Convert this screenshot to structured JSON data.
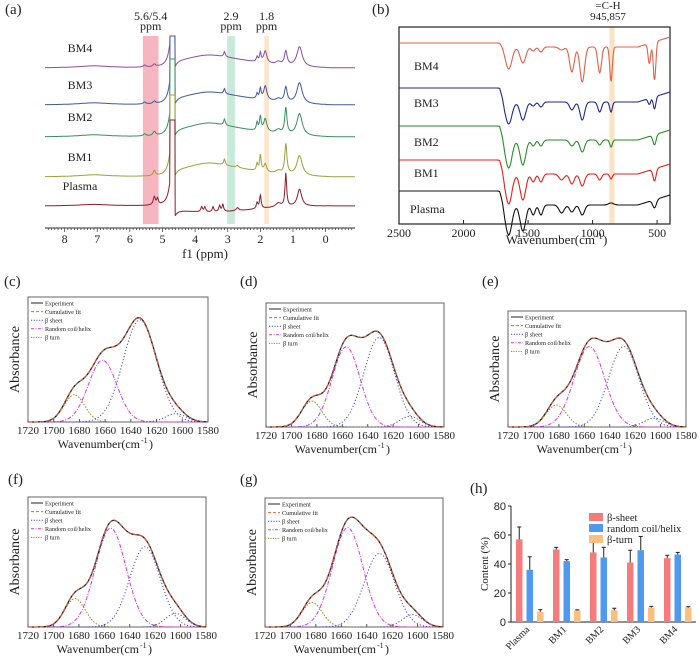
{
  "chart_data": [
    {
      "panel": "(a)",
      "type": "line",
      "title": "",
      "xlabel": "f1 (ppm)",
      "ylabel": "",
      "xlim": [
        8.6,
        -0.9
      ],
      "x_ticks": [
        "8",
        "7",
        "6",
        "5",
        "4",
        "3",
        "2",
        "1",
        "0"
      ],
      "x_tick_values": [
        8,
        7,
        6,
        5,
        4,
        3,
        2,
        1,
        0
      ],
      "highlights": [
        {
          "label": "5.6/5.4\nppm",
          "label_lines": [
            "5.6/5.4",
            "ppm"
          ],
          "from": 5.6,
          "to": 5.12,
          "color": "#f4a9b4"
        },
        {
          "label_lines": [
            "2.9",
            "ppm"
          ],
          "from": 3.02,
          "to": 2.78,
          "color": "#bfe6d3"
        },
        {
          "label_lines": [
            "1.8",
            "ppm"
          ],
          "from": 1.88,
          "to": 1.74,
          "color": "#fde0c0"
        }
      ],
      "series": [
        {
          "name": "BM4",
          "color": "#8a4f9e"
        },
        {
          "name": "BM3",
          "color": "#3f5a9c"
        },
        {
          "name": "BM2",
          "color": "#3a8f60"
        },
        {
          "name": "BM1",
          "color": "#9aa33a"
        },
        {
          "name": "Plasma",
          "color": "#8b1e2c"
        }
      ],
      "peaks_ppm": [
        7.1,
        5.55,
        5.25,
        4.7,
        3.6,
        3.1,
        2.7,
        2.1,
        2.0,
        1.85,
        1.45,
        1.22,
        0.8
      ]
    },
    {
      "panel": "(b)",
      "type": "line",
      "xlabel": "Wavenumber(cm⁻¹)",
      "ylabel": "",
      "xlim": [
        2500,
        400
      ],
      "x_ticks": [
        "2500",
        "2000",
        "1500",
        "1000",
        "500"
      ],
      "x_tick_values": [
        2500,
        2000,
        1500,
        1000,
        500
      ],
      "annotation": {
        "lines": [
          "=C-H",
          "945,857"
        ],
        "band_from": 870,
        "band_to": 830,
        "color": "#fbe3c6"
      },
      "series": [
        {
          "name": "BM4",
          "color": "#e0614a"
        },
        {
          "name": "BM3",
          "color": "#1f2a8a"
        },
        {
          "name": "BM2",
          "color": "#2a8a2a"
        },
        {
          "name": "BM1",
          "color": "#e02020"
        },
        {
          "name": "Plasma",
          "color": "#111111"
        }
      ],
      "bands_cm": [
        1650,
        1540,
        1450,
        1400,
        1240,
        1160,
        1080,
        945,
        857,
        560,
        520
      ]
    },
    {
      "panel": "(c)",
      "type": "line",
      "xlabel": "Wavenumber(cm⁻¹)",
      "ylabel": "Absorbance",
      "xlim": [
        1720,
        1580
      ],
      "x_ticks": [
        "1720",
        "1700",
        "1680",
        "1660",
        "1640",
        "1620",
        "1600",
        "1580"
      ],
      "legend": [
        "Experiment",
        "Cumulative fit",
        "β sheet",
        "Random coil/helix",
        "β turn"
      ],
      "components": [
        {
          "name": "β turn",
          "center": 1684,
          "height": 0.23,
          "width": 8
        },
        {
          "name": "Random coil/helix",
          "center": 1662,
          "height": 0.52,
          "width": 11
        },
        {
          "name": "β sheet",
          "center": 1633,
          "height": 0.86,
          "width": 13
        },
        {
          "name": "β sheet 2",
          "center": 1605,
          "height": 0.07,
          "width": 8
        }
      ]
    },
    {
      "panel": "(d)",
      "type": "line",
      "xlabel": "Wavenumber(cm⁻¹)",
      "ylabel": "Absorbance",
      "xlim": [
        1720,
        1580
      ],
      "x_ticks": [
        "1720",
        "1700",
        "1680",
        "1660",
        "1640",
        "1620",
        "1600",
        "1580"
      ],
      "legend": [
        "Experiment",
        "Cumulative fit",
        "β sheet",
        "Random coil/helix",
        "β turn"
      ],
      "components": [
        {
          "name": "β turn",
          "center": 1684,
          "height": 0.22,
          "width": 8
        },
        {
          "name": "Random coil/helix",
          "center": 1657,
          "height": 0.68,
          "width": 11
        },
        {
          "name": "β sheet",
          "center": 1631,
          "height": 0.76,
          "width": 12
        },
        {
          "name": "β sheet 2",
          "center": 1607,
          "height": 0.09,
          "width": 8
        }
      ]
    },
    {
      "panel": "(e)",
      "type": "line",
      "xlabel": "Wavenumber(cm⁻¹)",
      "ylabel": "Absorbance",
      "xlim": [
        1720,
        1580
      ],
      "x_ticks": [
        "1720",
        "1700",
        "1680",
        "1660",
        "1640",
        "1620",
        "1600",
        "1580"
      ],
      "legend": [
        "Experiment",
        "Cumulative fit",
        "β sheet",
        "Random coil/helix",
        "β turn"
      ],
      "components": [
        {
          "name": "β turn",
          "center": 1682,
          "height": 0.2,
          "width": 8
        },
        {
          "name": "Random coil/helix",
          "center": 1656,
          "height": 0.73,
          "width": 12
        },
        {
          "name": "β sheet",
          "center": 1629,
          "height": 0.73,
          "width": 12
        },
        {
          "name": "β sheet 2",
          "center": 1605,
          "height": 0.08,
          "width": 8
        }
      ]
    },
    {
      "panel": "(f)",
      "type": "line",
      "xlabel": "Wavenumber(cm⁻¹)",
      "ylabel": "Absorbance",
      "xlim": [
        1720,
        1580
      ],
      "x_ticks": [
        "1720",
        "1700",
        "1680",
        "1660",
        "1640",
        "1620",
        "1600",
        "1580"
      ],
      "legend": [
        "Experiment",
        "Cumulative fit",
        "β sheet",
        "Random coil/helix",
        "β turn"
      ],
      "components": [
        {
          "name": "β turn",
          "center": 1683,
          "height": 0.23,
          "width": 8
        },
        {
          "name": "Random coil/helix",
          "center": 1655,
          "height": 0.8,
          "width": 12
        },
        {
          "name": "β sheet",
          "center": 1628,
          "height": 0.65,
          "width": 12
        },
        {
          "name": "β sheet 2",
          "center": 1604,
          "height": 0.11,
          "width": 8
        }
      ]
    },
    {
      "panel": "(g)",
      "type": "line",
      "xlabel": "Wavenumber(cm⁻¹)",
      "ylabel": "Absorbance",
      "xlim": [
        1720,
        1580
      ],
      "x_ticks": [
        "1720",
        "1700",
        "1680",
        "1660",
        "1640",
        "1620",
        "1600",
        "1580"
      ],
      "legend": [
        "Experiment",
        "Cumulative fit",
        "β sheet",
        "Random coil/helix",
        "β turn"
      ],
      "components": [
        {
          "name": "β turn",
          "center": 1683,
          "height": 0.2,
          "width": 8
        },
        {
          "name": "Random coil/helix",
          "center": 1655,
          "height": 0.81,
          "width": 12
        },
        {
          "name": "β sheet",
          "center": 1630,
          "height": 0.6,
          "width": 12
        },
        {
          "name": "β sheet 2",
          "center": 1604,
          "height": 0.1,
          "width": 8
        }
      ]
    },
    {
      "panel": "(h)",
      "type": "bar",
      "xlabel": "",
      "ylabel": "Content (%)",
      "ylim": [
        0,
        80
      ],
      "y_ticks": [
        "0",
        "20",
        "40",
        "60",
        "80"
      ],
      "categories": [
        "Plasma",
        "BM1",
        "BM2",
        "BM3",
        "BM4"
      ],
      "legend_position": "top-right",
      "series": [
        {
          "name": "β-sheet",
          "color": "#f47c7c",
          "values": [
            57,
            50,
            48,
            41,
            44
          ],
          "errors": [
            8.5,
            1.5,
            7.5,
            8.5,
            2
          ]
        },
        {
          "name": "random coil/helix",
          "color": "#4f9af0",
          "values": [
            36,
            42,
            44.5,
            49.5,
            46.5
          ],
          "errors": [
            9,
            1,
            7,
            9.5,
            1.5
          ]
        },
        {
          "name": "β-turn",
          "color": "#fbbf7f",
          "values": [
            7,
            8,
            8,
            10,
            10
          ],
          "errors": [
            1.5,
            0.4,
            1.5,
            0.8,
            0.6
          ]
        }
      ]
    }
  ],
  "labels": {
    "a": "(a)",
    "b": "(b)",
    "c": "(c)",
    "d": "(d)",
    "e": "(e)",
    "f": "(f)",
    "g": "(g)",
    "h": "(h)"
  },
  "legend_colors": {
    "Experiment": "#222222",
    "Cumulative fit": "#e5603c",
    "beta_sheet": "#4a4ac8",
    "random_coil": "#d43ad4",
    "beta_turn": "#8a8a2a"
  }
}
